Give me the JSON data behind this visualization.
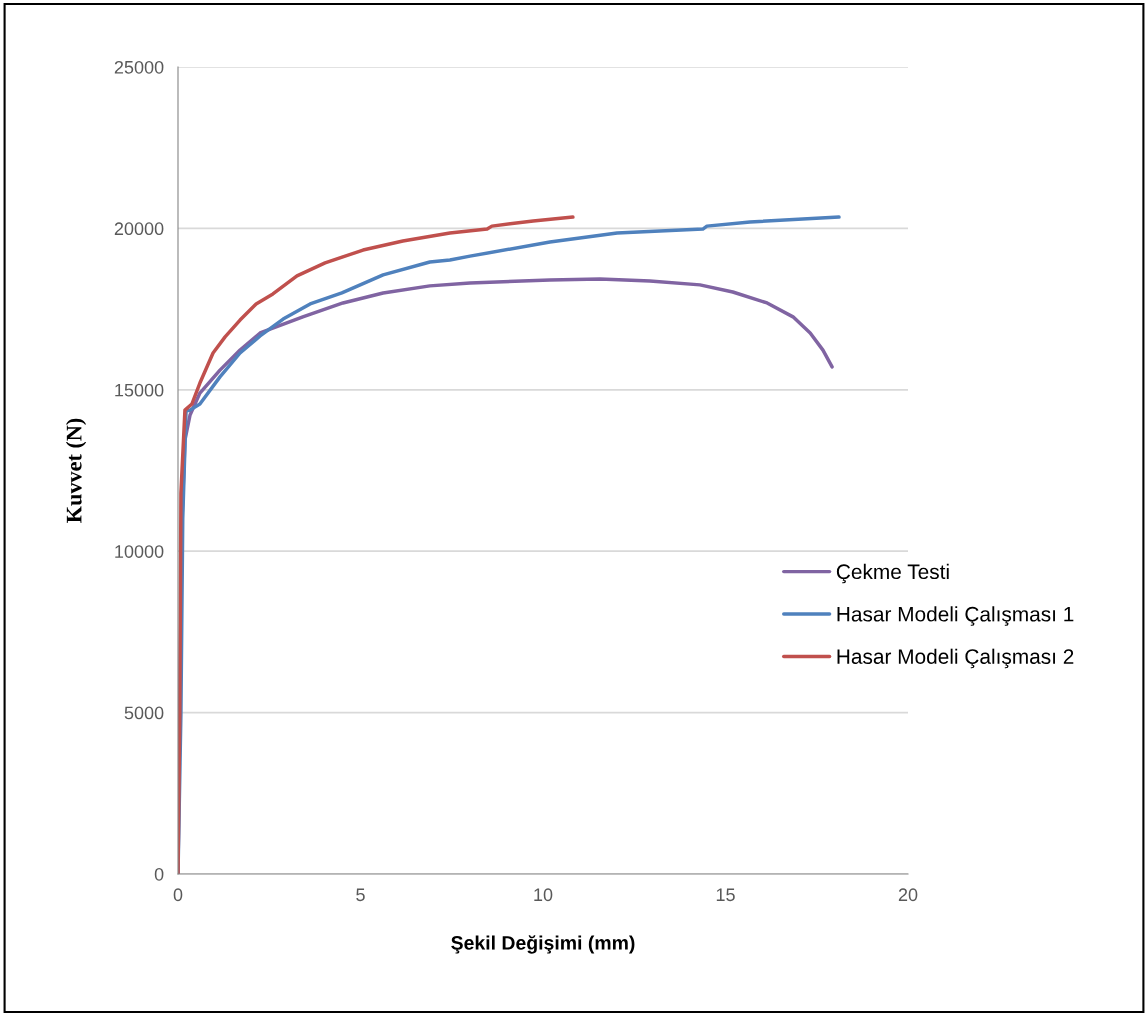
{
  "chart_data": {
    "type": "line",
    "xlabel": "Şekil Değişimi (mm)",
    "ylabel": "Kuvvet (N)",
    "xlim": [
      0,
      20
    ],
    "xticks": [
      0,
      5,
      10,
      15,
      20
    ],
    "ylim": [
      0,
      25000
    ],
    "yticks": [
      0,
      5000,
      10000,
      15000,
      20000,
      25000
    ],
    "grid": "y",
    "legend": "right",
    "marker": "none",
    "line_style": "solid",
    "series": [
      {
        "name": "Çekme Testi",
        "color": "#8064a2",
        "x": [
          0,
          0.05,
          0.11,
          0.19,
          0.33,
          0.6,
          1.15,
          1.7,
          2.25,
          3.42,
          4.52,
          5.62,
          6.9,
          8.0,
          10.19,
          11.56,
          12.93,
          14.3,
          15.2,
          16.14,
          16.85,
          17.32,
          17.67,
          17.92
        ],
        "values": [
          0,
          5400,
          10970,
          13440,
          14220,
          14900,
          15610,
          16230,
          16760,
          17260,
          17690,
          18000,
          18220,
          18310,
          18400,
          18430,
          18370,
          18250,
          18030,
          17690,
          17260,
          16760,
          16230,
          15710
        ]
      },
      {
        "name": "Hasar Modeli Çalışması 1",
        "color": "#4f81bd",
        "x": [
          0,
          0.08,
          0.13,
          0.22,
          0.33,
          0.6,
          1.15,
          1.7,
          2.25,
          2.88,
          3.62,
          4.49,
          5.62,
          6.9,
          7.45,
          8.0,
          10.19,
          12.03,
          14.38,
          14.49,
          15.67,
          18.11
        ],
        "values": [
          0,
          5000,
          11000,
          14340,
          14370,
          14560,
          15400,
          16140,
          16670,
          17190,
          17660,
          18000,
          18560,
          18960,
          19020,
          19140,
          19580,
          19860,
          19980,
          20070,
          20200,
          20350
        ]
      },
      {
        "name": "Hasar Modeli Çalışması 2",
        "color": "#c0504d",
        "x": [
          0,
          0.05,
          0.08,
          0.19,
          0.38,
          0.6,
          0.96,
          1.29,
          1.7,
          2.14,
          2.6,
          3.26,
          4.03,
          5.07,
          6.16,
          7.45,
          8.47,
          8.6,
          9.73,
          10.82
        ],
        "values": [
          0,
          5000,
          11800,
          14370,
          14560,
          15210,
          16140,
          16640,
          17160,
          17660,
          17970,
          18530,
          18930,
          19330,
          19610,
          19860,
          19980,
          20070,
          20230,
          20350
        ]
      }
    ]
  }
}
